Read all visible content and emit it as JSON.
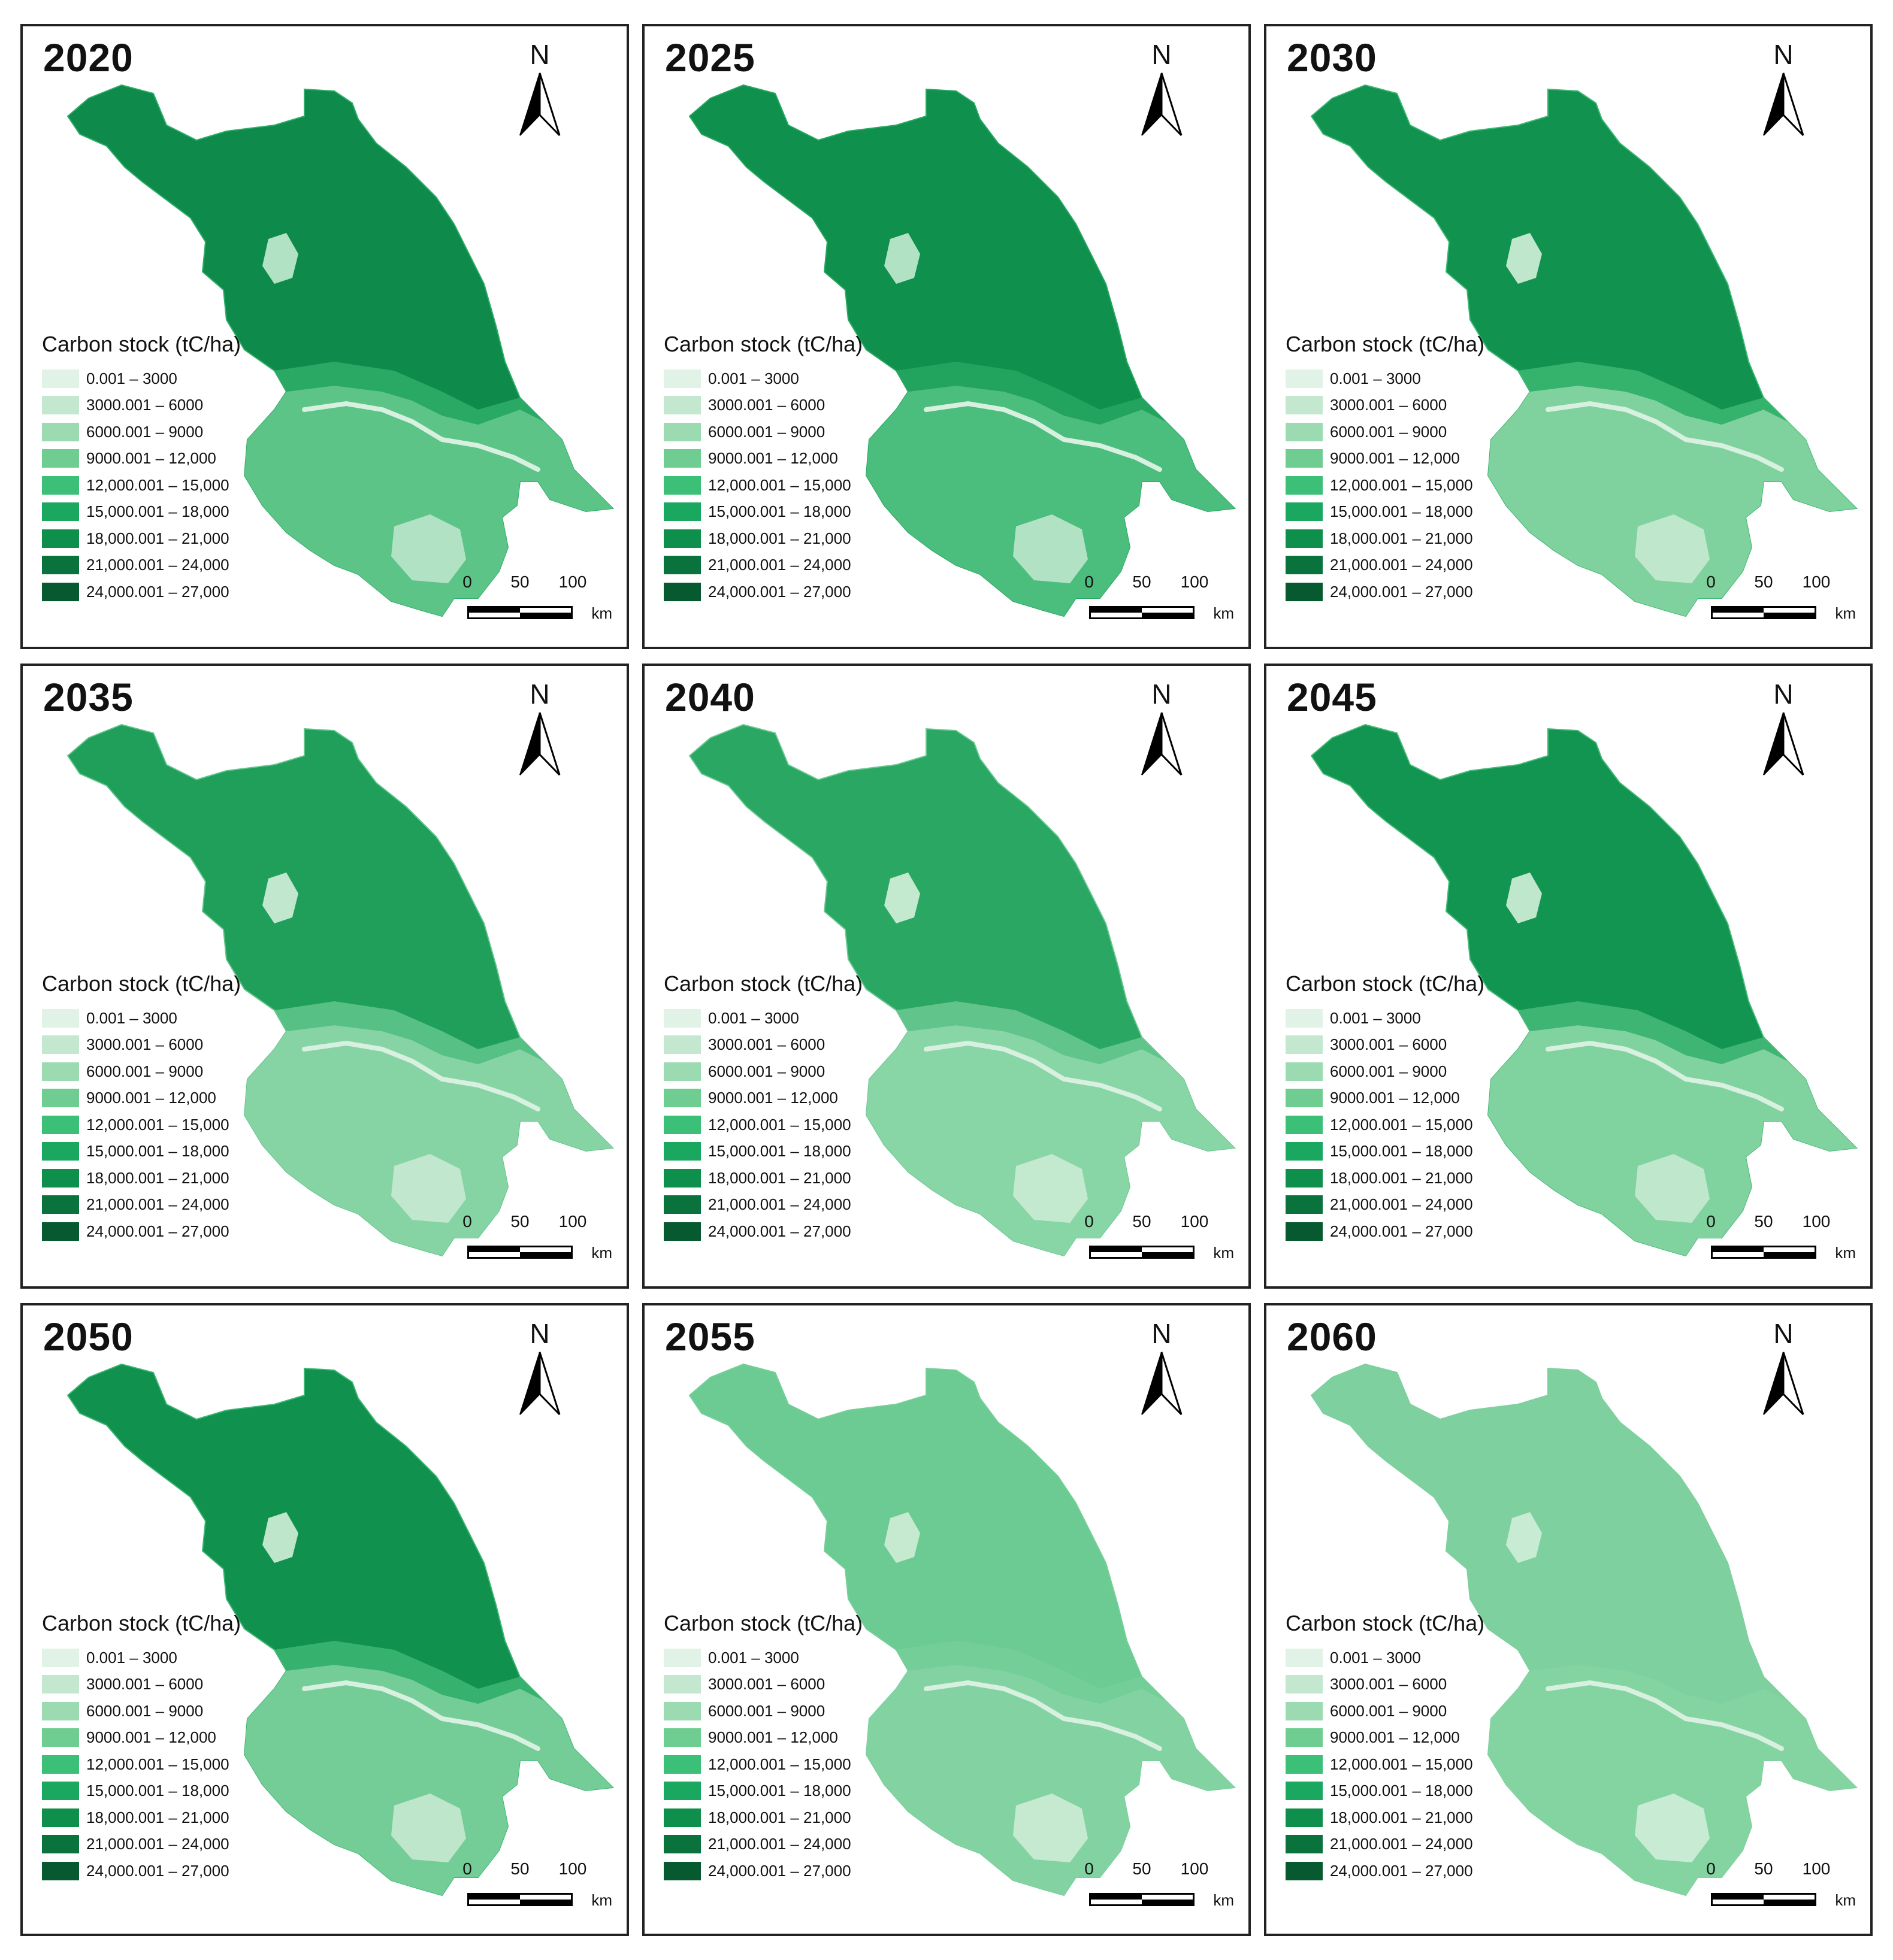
{
  "legend": {
    "title": "Carbon stock (tC/ha)",
    "classes": [
      {
        "label": "0.001 – 3000",
        "color": "#e0f3e6"
      },
      {
        "label": "3000.001 – 6000",
        "color": "#c3e8cf"
      },
      {
        "label": "6000.001 – 9000",
        "color": "#9cdbb2"
      },
      {
        "label": "9000.001 – 12,000",
        "color": "#6fcd92"
      },
      {
        "label": "12,000.001 – 15,000",
        "color": "#3cbf77"
      },
      {
        "label": "15,000.001 – 18,000",
        "color": "#1aa860"
      },
      {
        "label": "18,000.001 – 21,000",
        "color": "#0f8f4c"
      },
      {
        "label": "21,000.001 – 24,000",
        "color": "#0a733d"
      },
      {
        "label": "24,000.001 – 27,000",
        "color": "#075a30"
      }
    ]
  },
  "north_label": "N",
  "scale": {
    "ticks": [
      "0",
      "50",
      "100"
    ],
    "unit": "km"
  },
  "panels": [
    {
      "year": "2020",
      "north_color": "#0e8a4a",
      "south_color": "#5cc487",
      "corridor_color": "#2fae6a",
      "lake_color": "#b2e2c4"
    },
    {
      "year": "2025",
      "north_color": "#10904d",
      "south_color": "#4bbd7d",
      "corridor_color": "#26a862",
      "lake_color": "#b2e2c4"
    },
    {
      "year": "2030",
      "north_color": "#11924e",
      "south_color": "#7fd29e",
      "corridor_color": "#3cb873",
      "lake_color": "#bfe7cc"
    },
    {
      "year": "2035",
      "north_color": "#1f9f5a",
      "south_color": "#86d4a4",
      "corridor_color": "#62c68c",
      "lake_color": "#c1e8ce"
    },
    {
      "year": "2040",
      "north_color": "#2aa762",
      "south_color": "#88d5a5",
      "corridor_color": "#6bc993",
      "lake_color": "#c3e9cf"
    },
    {
      "year": "2045",
      "north_color": "#129550",
      "south_color": "#80d29f",
      "corridor_color": "#48bb7a",
      "lake_color": "#bfe7cc"
    },
    {
      "year": "2050",
      "north_color": "#10914d",
      "south_color": "#74cd97",
      "corridor_color": "#3db674",
      "lake_color": "#bde6cb"
    },
    {
      "year": "2055",
      "north_color": "#6ccb92",
      "south_color": "#82d3a1",
      "corridor_color": "#76cf99",
      "lake_color": "#c5eacf"
    },
    {
      "year": "2060",
      "north_color": "#7ed19e",
      "south_color": "#84d4a2",
      "corridor_color": "#7ed19e",
      "lake_color": "#c8ebd3"
    }
  ]
}
